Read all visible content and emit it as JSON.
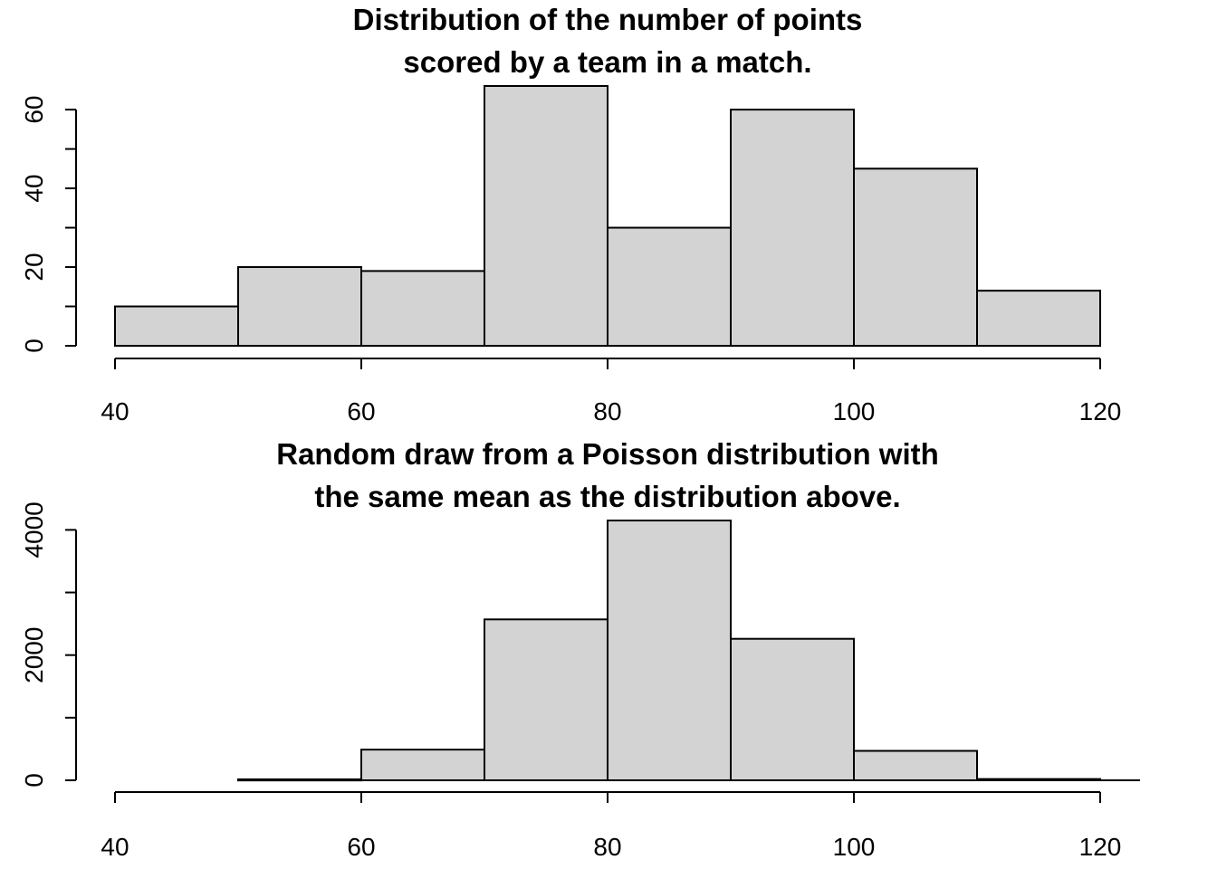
{
  "chart_data": [
    {
      "type": "bar",
      "title_lines": [
        "Distribution of the number of points",
        "scored by a team in a match."
      ],
      "xlabel": "",
      "ylabel": "",
      "bins": [
        {
          "x0": 40,
          "x1": 50,
          "count": 10
        },
        {
          "x0": 50,
          "x1": 60,
          "count": 20
        },
        {
          "x0": 60,
          "x1": 70,
          "count": 19
        },
        {
          "x0": 70,
          "x1": 80,
          "count": 66
        },
        {
          "x0": 80,
          "x1": 90,
          "count": 30
        },
        {
          "x0": 90,
          "x1": 100,
          "count": 60
        },
        {
          "x0": 100,
          "x1": 110,
          "count": 45
        },
        {
          "x0": 110,
          "x1": 120,
          "count": 14
        }
      ],
      "xlim": [
        40,
        120
      ],
      "ylim": [
        0,
        66
      ],
      "x_ticks": [
        "40",
        "60",
        "80",
        "100",
        "120"
      ],
      "y_ticks": [
        "0",
        "20",
        "40",
        "60"
      ],
      "y_minor_ticks": [
        10,
        30,
        50
      ],
      "bar_color": "#d3d3d3",
      "baseline": false,
      "grid": false,
      "legend": "none"
    },
    {
      "type": "bar",
      "title_lines": [
        "Random draw from a Poisson distribution with",
        "the same mean as the distribution above."
      ],
      "xlabel": "",
      "ylabel": "",
      "bins": [
        {
          "x0": 40,
          "x1": 50,
          "count": 0
        },
        {
          "x0": 50,
          "x1": 60,
          "count": 15
        },
        {
          "x0": 60,
          "x1": 70,
          "count": 490
        },
        {
          "x0": 70,
          "x1": 80,
          "count": 2570
        },
        {
          "x0": 80,
          "x1": 90,
          "count": 4150
        },
        {
          "x0": 90,
          "x1": 100,
          "count": 2260
        },
        {
          "x0": 100,
          "x1": 110,
          "count": 470
        },
        {
          "x0": 110,
          "x1": 120,
          "count": 20
        }
      ],
      "xlim": [
        40,
        120
      ],
      "ylim": [
        0,
        4150
      ],
      "x_ticks": [
        "40",
        "60",
        "80",
        "100",
        "120"
      ],
      "y_ticks": [
        "0",
        "2000",
        "4000"
      ],
      "y_minor_ticks": [
        1000,
        3000
      ],
      "bar_color": "#d3d3d3",
      "baseline": true,
      "grid": false,
      "legend": "none"
    }
  ]
}
